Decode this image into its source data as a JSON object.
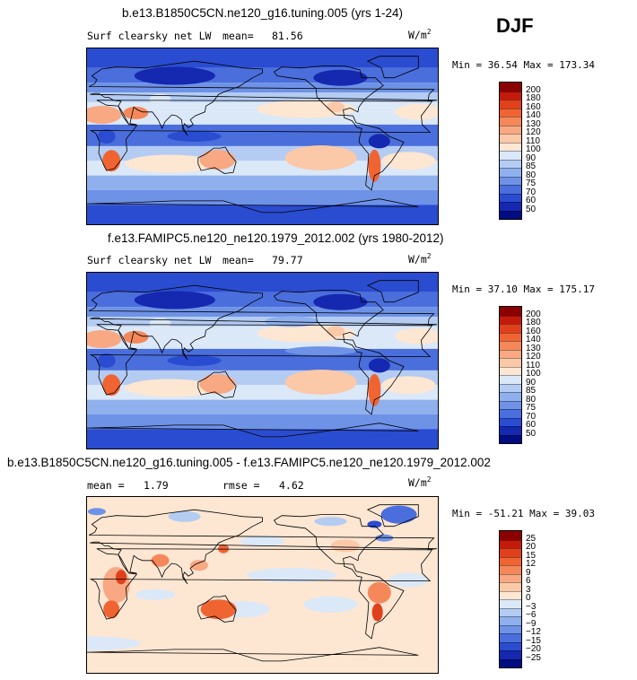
{
  "season": "DJF",
  "units_base": "W/m",
  "units_exp": "2",
  "panels": [
    {
      "title": "b.e13.B1850C5CN.ne120_g16.tuning.005 (yrs 1-24)",
      "variable": "Surf clearsky net LW",
      "mean_label": "mean=",
      "mean_value": "81.56",
      "min_label": "Min =",
      "min_value": "36.54",
      "max_label": "Max =",
      "max_value": "173.34"
    },
    {
      "title": "f.e13.FAMIPC5.ne120_ne120.1979_2012.002 (yrs 1980-2012)",
      "variable": "Surf clearsky net LW",
      "mean_label": "mean=",
      "mean_value": "79.77",
      "min_label": "Min =",
      "min_value": "37.10",
      "max_label": "Max =",
      "max_value": "175.17"
    },
    {
      "title": "b.e13.B1850C5CN.ne120_g16.tuning.005 - f.e13.FAMIPC5.ne120_ne120.1979_2012.002",
      "mean_label": "mean =",
      "mean_value": "1.79",
      "rmse_label": "rmse =",
      "rmse_value": "4.62",
      "min_label": "Min =",
      "min_value": "-51.21",
      "max_label": "Max =",
      "max_value": "39.03"
    }
  ],
  "chart_data": [
    {
      "type": "heatmap",
      "title": "b.e13.B1850C5CN.ne120_g16.tuning.005 (yrs 1-24)",
      "variable": "Surf clearsky net LW",
      "units": "W/m2",
      "mean": 81.56,
      "min": 36.54,
      "max": 173.34,
      "colorbar_levels": [
        "200",
        "180",
        "160",
        "140",
        "130",
        "120",
        "110",
        "100",
        "90",
        "85",
        "80",
        "75",
        "70",
        "60",
        "50"
      ],
      "colorbar_colors": [
        "#8b0000",
        "#c41a0c",
        "#e0401c",
        "#f06432",
        "#f5885a",
        "#f8a882",
        "#fbc8a8",
        "#fde6d2",
        "#dbe8f8",
        "#b4ccf2",
        "#8fb0ec",
        "#6e92e6",
        "#4a6edc",
        "#2a4cd0",
        "#1428b0",
        "#000c82"
      ]
    },
    {
      "type": "heatmap",
      "title": "f.e13.FAMIPC5.ne120_ne120.1979_2012.002 (yrs 1980-2012)",
      "variable": "Surf clearsky net LW",
      "units": "W/m2",
      "mean": 79.77,
      "min": 37.1,
      "max": 175.17,
      "colorbar_levels": [
        "200",
        "180",
        "160",
        "140",
        "130",
        "120",
        "110",
        "100",
        "90",
        "85",
        "80",
        "75",
        "70",
        "60",
        "50"
      ],
      "colorbar_colors": [
        "#8b0000",
        "#c41a0c",
        "#e0401c",
        "#f06432",
        "#f5885a",
        "#f8a882",
        "#fbc8a8",
        "#fde6d2",
        "#dbe8f8",
        "#b4ccf2",
        "#8fb0ec",
        "#6e92e6",
        "#4a6edc",
        "#2a4cd0",
        "#1428b0",
        "#000c82"
      ]
    },
    {
      "type": "heatmap",
      "title": "b.e13.B1850C5CN.ne120_g16.tuning.005 - f.e13.FAMIPC5.ne120_ne120.1979_2012.002",
      "units": "W/m2",
      "mean": 1.79,
      "rmse": 4.62,
      "min": -51.21,
      "max": 39.03,
      "colorbar_levels": [
        "25",
        "20",
        "15",
        "12",
        "9",
        "6",
        "3",
        "0",
        "−3",
        "−6",
        "−9",
        "−12",
        "−15",
        "−20",
        "−25"
      ],
      "colorbar_colors": [
        "#8b0000",
        "#c41a0c",
        "#e0401c",
        "#f06432",
        "#f5885a",
        "#f8a882",
        "#fbc8a8",
        "#fde6d2",
        "#dbe8f8",
        "#b4ccf2",
        "#8fb0ec",
        "#6e92e6",
        "#4a6edc",
        "#2a4cd0",
        "#1428b0",
        "#000c82"
      ]
    }
  ]
}
